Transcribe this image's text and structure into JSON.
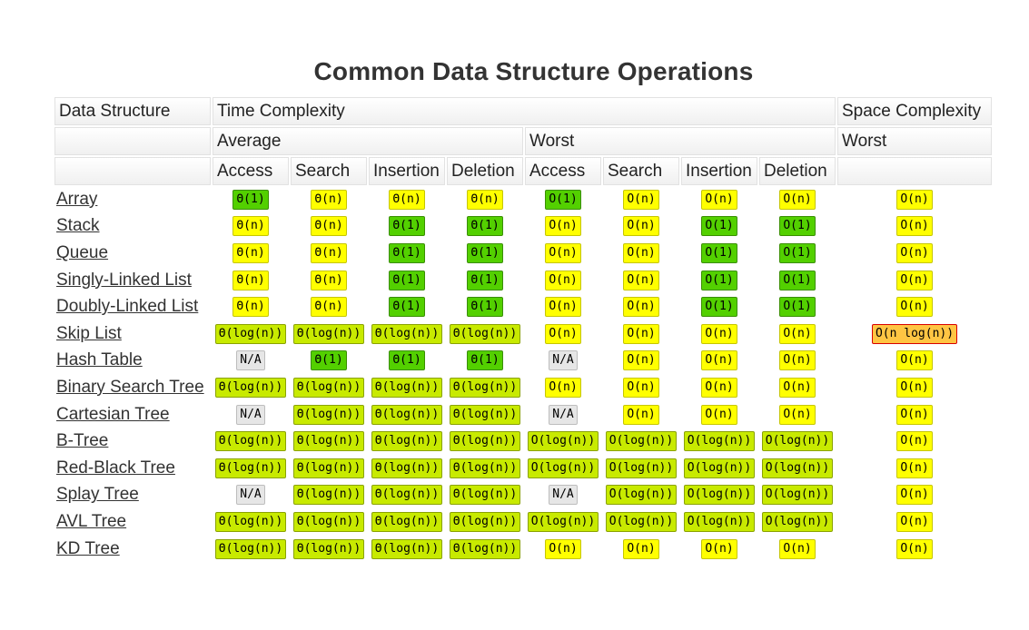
{
  "page": {
    "title": "Common Data Structure Operations"
  },
  "headers": {
    "data_structure": "Data Structure",
    "time_complexity": "Time Complexity",
    "space_complexity": "Space Complexity",
    "average": "Average",
    "worst": "Worst",
    "space_worst": "Worst",
    "ops": [
      "Access",
      "Search",
      "Insertion",
      "Deletion",
      "Access",
      "Search",
      "Insertion",
      "Deletion"
    ]
  },
  "colors": {
    "good": "#53d000",
    "fair": "#c8ea00",
    "bad": "#ffff00",
    "poor": "#ffc543",
    "na": "#e6e6e6"
  },
  "rows": [
    {
      "name": "Array",
      "cells": [
        {
          "t": "Θ(1)",
          "c": "good"
        },
        {
          "t": "Θ(n)",
          "c": "bad"
        },
        {
          "t": "Θ(n)",
          "c": "bad"
        },
        {
          "t": "Θ(n)",
          "c": "bad"
        },
        {
          "t": "O(1)",
          "c": "good"
        },
        {
          "t": "O(n)",
          "c": "bad"
        },
        {
          "t": "O(n)",
          "c": "bad"
        },
        {
          "t": "O(n)",
          "c": "bad"
        },
        {
          "t": "O(n)",
          "c": "bad"
        }
      ]
    },
    {
      "name": "Stack",
      "cells": [
        {
          "t": "Θ(n)",
          "c": "bad"
        },
        {
          "t": "Θ(n)",
          "c": "bad"
        },
        {
          "t": "Θ(1)",
          "c": "good"
        },
        {
          "t": "Θ(1)",
          "c": "good"
        },
        {
          "t": "O(n)",
          "c": "bad"
        },
        {
          "t": "O(n)",
          "c": "bad"
        },
        {
          "t": "O(1)",
          "c": "good"
        },
        {
          "t": "O(1)",
          "c": "good"
        },
        {
          "t": "O(n)",
          "c": "bad"
        }
      ]
    },
    {
      "name": "Queue",
      "cells": [
        {
          "t": "Θ(n)",
          "c": "bad"
        },
        {
          "t": "Θ(n)",
          "c": "bad"
        },
        {
          "t": "Θ(1)",
          "c": "good"
        },
        {
          "t": "Θ(1)",
          "c": "good"
        },
        {
          "t": "O(n)",
          "c": "bad"
        },
        {
          "t": "O(n)",
          "c": "bad"
        },
        {
          "t": "O(1)",
          "c": "good"
        },
        {
          "t": "O(1)",
          "c": "good"
        },
        {
          "t": "O(n)",
          "c": "bad"
        }
      ]
    },
    {
      "name": "Singly-Linked List",
      "cells": [
        {
          "t": "Θ(n)",
          "c": "bad"
        },
        {
          "t": "Θ(n)",
          "c": "bad"
        },
        {
          "t": "Θ(1)",
          "c": "good"
        },
        {
          "t": "Θ(1)",
          "c": "good"
        },
        {
          "t": "O(n)",
          "c": "bad"
        },
        {
          "t": "O(n)",
          "c": "bad"
        },
        {
          "t": "O(1)",
          "c": "good"
        },
        {
          "t": "O(1)",
          "c": "good"
        },
        {
          "t": "O(n)",
          "c": "bad"
        }
      ]
    },
    {
      "name": "Doubly-Linked List",
      "cells": [
        {
          "t": "Θ(n)",
          "c": "bad"
        },
        {
          "t": "Θ(n)",
          "c": "bad"
        },
        {
          "t": "Θ(1)",
          "c": "good"
        },
        {
          "t": "Θ(1)",
          "c": "good"
        },
        {
          "t": "O(n)",
          "c": "bad"
        },
        {
          "t": "O(n)",
          "c": "bad"
        },
        {
          "t": "O(1)",
          "c": "good"
        },
        {
          "t": "O(1)",
          "c": "good"
        },
        {
          "t": "O(n)",
          "c": "bad"
        }
      ]
    },
    {
      "name": "Skip List",
      "cells": [
        {
          "t": "Θ(log(n))",
          "c": "fair"
        },
        {
          "t": "Θ(log(n))",
          "c": "fair"
        },
        {
          "t": "Θ(log(n))",
          "c": "fair"
        },
        {
          "t": "Θ(log(n))",
          "c": "fair"
        },
        {
          "t": "O(n)",
          "c": "bad"
        },
        {
          "t": "O(n)",
          "c": "bad"
        },
        {
          "t": "O(n)",
          "c": "bad"
        },
        {
          "t": "O(n)",
          "c": "bad"
        },
        {
          "t": "O(n log(n))",
          "c": "poor"
        }
      ]
    },
    {
      "name": "Hash Table",
      "cells": [
        {
          "t": "N/A",
          "c": "na"
        },
        {
          "t": "Θ(1)",
          "c": "good"
        },
        {
          "t": "Θ(1)",
          "c": "good"
        },
        {
          "t": "Θ(1)",
          "c": "good"
        },
        {
          "t": "N/A",
          "c": "na"
        },
        {
          "t": "O(n)",
          "c": "bad"
        },
        {
          "t": "O(n)",
          "c": "bad"
        },
        {
          "t": "O(n)",
          "c": "bad"
        },
        {
          "t": "O(n)",
          "c": "bad"
        }
      ]
    },
    {
      "name": "Binary Search Tree",
      "cells": [
        {
          "t": "Θ(log(n))",
          "c": "fair"
        },
        {
          "t": "Θ(log(n))",
          "c": "fair"
        },
        {
          "t": "Θ(log(n))",
          "c": "fair"
        },
        {
          "t": "Θ(log(n))",
          "c": "fair"
        },
        {
          "t": "O(n)",
          "c": "bad"
        },
        {
          "t": "O(n)",
          "c": "bad"
        },
        {
          "t": "O(n)",
          "c": "bad"
        },
        {
          "t": "O(n)",
          "c": "bad"
        },
        {
          "t": "O(n)",
          "c": "bad"
        }
      ]
    },
    {
      "name": "Cartesian Tree",
      "cells": [
        {
          "t": "N/A",
          "c": "na"
        },
        {
          "t": "Θ(log(n))",
          "c": "fair"
        },
        {
          "t": "Θ(log(n))",
          "c": "fair"
        },
        {
          "t": "Θ(log(n))",
          "c": "fair"
        },
        {
          "t": "N/A",
          "c": "na"
        },
        {
          "t": "O(n)",
          "c": "bad"
        },
        {
          "t": "O(n)",
          "c": "bad"
        },
        {
          "t": "O(n)",
          "c": "bad"
        },
        {
          "t": "O(n)",
          "c": "bad"
        }
      ]
    },
    {
      "name": "B-Tree",
      "cells": [
        {
          "t": "Θ(log(n))",
          "c": "fair"
        },
        {
          "t": "Θ(log(n))",
          "c": "fair"
        },
        {
          "t": "Θ(log(n))",
          "c": "fair"
        },
        {
          "t": "Θ(log(n))",
          "c": "fair"
        },
        {
          "t": "O(log(n))",
          "c": "fair"
        },
        {
          "t": "O(log(n))",
          "c": "fair"
        },
        {
          "t": "O(log(n))",
          "c": "fair"
        },
        {
          "t": "O(log(n))",
          "c": "fair"
        },
        {
          "t": "O(n)",
          "c": "bad"
        }
      ]
    },
    {
      "name": "Red-Black Tree",
      "cells": [
        {
          "t": "Θ(log(n))",
          "c": "fair"
        },
        {
          "t": "Θ(log(n))",
          "c": "fair"
        },
        {
          "t": "Θ(log(n))",
          "c": "fair"
        },
        {
          "t": "Θ(log(n))",
          "c": "fair"
        },
        {
          "t": "O(log(n))",
          "c": "fair"
        },
        {
          "t": "O(log(n))",
          "c": "fair"
        },
        {
          "t": "O(log(n))",
          "c": "fair"
        },
        {
          "t": "O(log(n))",
          "c": "fair"
        },
        {
          "t": "O(n)",
          "c": "bad"
        }
      ]
    },
    {
      "name": "Splay Tree",
      "cells": [
        {
          "t": "N/A",
          "c": "na"
        },
        {
          "t": "Θ(log(n))",
          "c": "fair"
        },
        {
          "t": "Θ(log(n))",
          "c": "fair"
        },
        {
          "t": "Θ(log(n))",
          "c": "fair"
        },
        {
          "t": "N/A",
          "c": "na"
        },
        {
          "t": "O(log(n))",
          "c": "fair"
        },
        {
          "t": "O(log(n))",
          "c": "fair"
        },
        {
          "t": "O(log(n))",
          "c": "fair"
        },
        {
          "t": "O(n)",
          "c": "bad"
        }
      ]
    },
    {
      "name": "AVL Tree",
      "cells": [
        {
          "t": "Θ(log(n))",
          "c": "fair"
        },
        {
          "t": "Θ(log(n))",
          "c": "fair"
        },
        {
          "t": "Θ(log(n))",
          "c": "fair"
        },
        {
          "t": "Θ(log(n))",
          "c": "fair"
        },
        {
          "t": "O(log(n))",
          "c": "fair"
        },
        {
          "t": "O(log(n))",
          "c": "fair"
        },
        {
          "t": "O(log(n))",
          "c": "fair"
        },
        {
          "t": "O(log(n))",
          "c": "fair"
        },
        {
          "t": "O(n)",
          "c": "bad"
        }
      ]
    },
    {
      "name": "KD Tree",
      "cells": [
        {
          "t": "Θ(log(n))",
          "c": "fair"
        },
        {
          "t": "Θ(log(n))",
          "c": "fair"
        },
        {
          "t": "Θ(log(n))",
          "c": "fair"
        },
        {
          "t": "Θ(log(n))",
          "c": "fair"
        },
        {
          "t": "O(n)",
          "c": "bad"
        },
        {
          "t": "O(n)",
          "c": "bad"
        },
        {
          "t": "O(n)",
          "c": "bad"
        },
        {
          "t": "O(n)",
          "c": "bad"
        },
        {
          "t": "O(n)",
          "c": "bad"
        }
      ]
    }
  ]
}
